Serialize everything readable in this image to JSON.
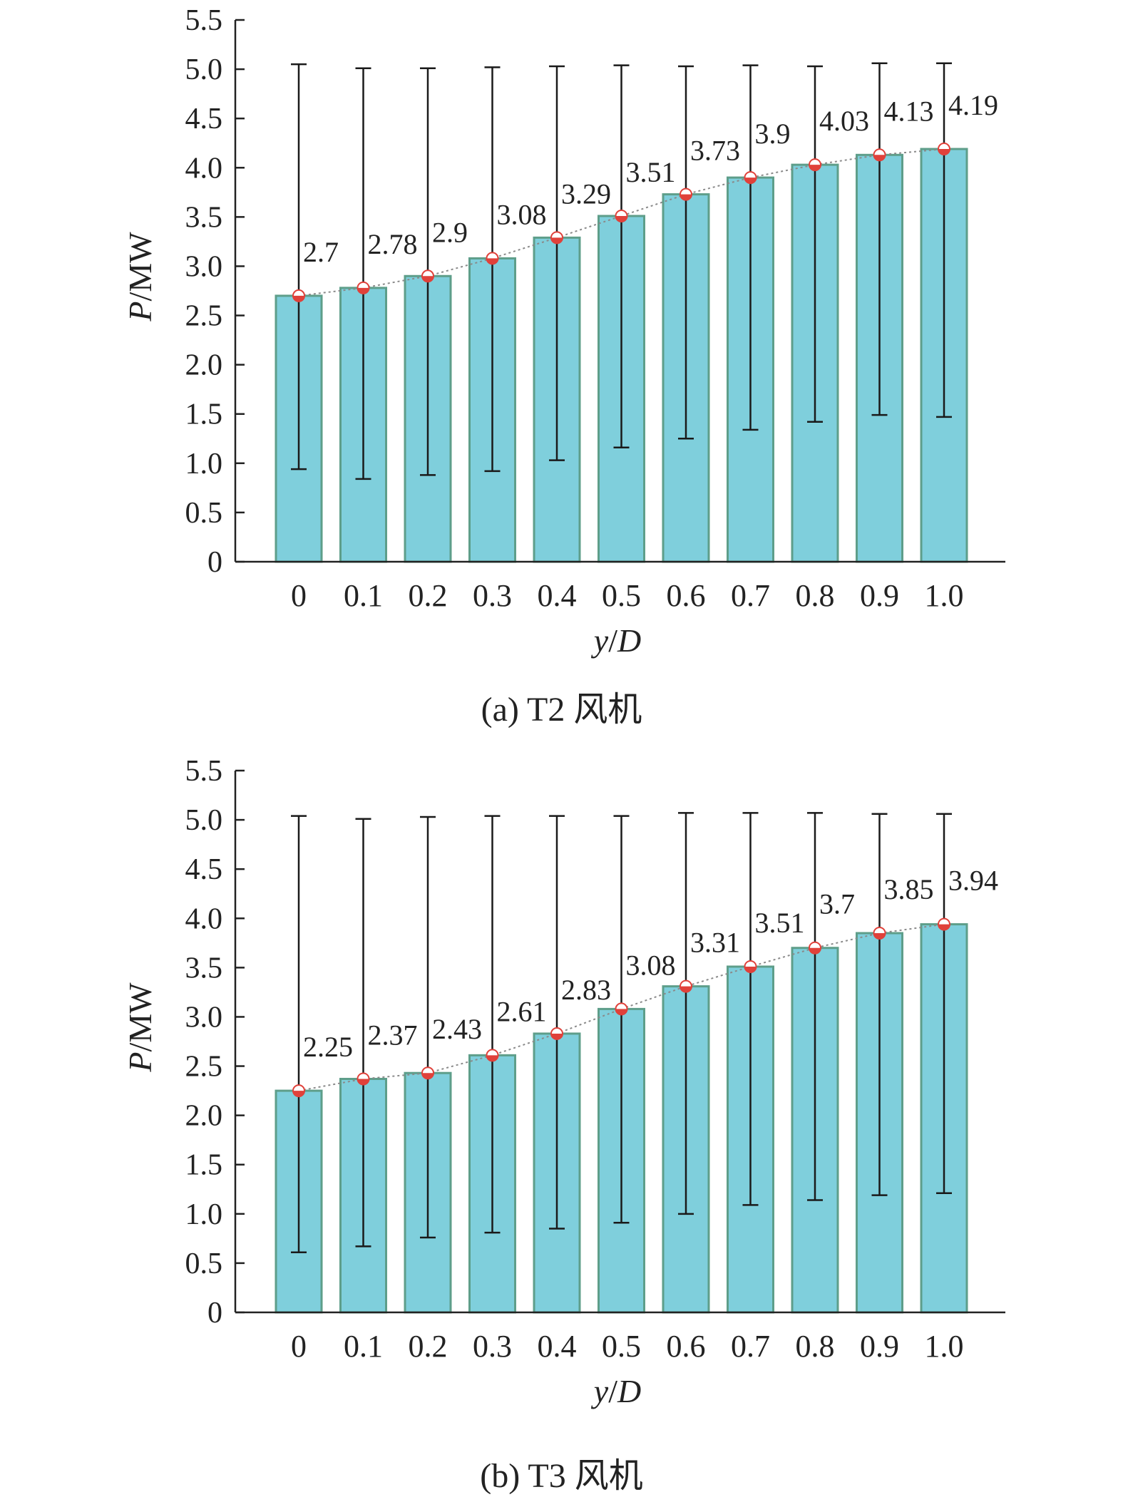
{
  "chart_data": [
    {
      "type": "bar",
      "caption": "(a) T2 风机",
      "xlabel": "y/D",
      "ylabel": "P/MW",
      "ylim": [
        0,
        5.5
      ],
      "yticks": [
        "0",
        "0.5",
        "1.0",
        "1.5",
        "2.0",
        "2.5",
        "3.0",
        "3.5",
        "4.0",
        "4.5",
        "5.0",
        "5.5"
      ],
      "categories": [
        "0",
        "0.1",
        "0.2",
        "0.3",
        "0.4",
        "0.5",
        "0.6",
        "0.7",
        "0.8",
        "0.9",
        "1.0"
      ],
      "values": [
        2.7,
        2.78,
        2.9,
        3.08,
        3.29,
        3.51,
        3.73,
        3.9,
        4.03,
        4.13,
        4.19
      ],
      "labels": [
        "2.7",
        "2.78",
        "2.9",
        "3.08",
        "3.29",
        "3.51",
        "3.73",
        "3.9",
        "4.03",
        "4.13",
        "4.19"
      ],
      "error_min": [
        0.94,
        0.84,
        0.88,
        0.92,
        1.03,
        1.16,
        1.25,
        1.34,
        1.42,
        1.49,
        1.47
      ],
      "error_max": [
        5.05,
        5.01,
        5.01,
        5.02,
        5.03,
        5.04,
        5.03,
        5.04,
        5.03,
        5.06,
        5.06
      ],
      "grid": false,
      "colors": {
        "bar": "#7fcfdc",
        "bar_edge": "#5e9e8a",
        "marker": "#e0413a",
        "trend": "#8a8a8a",
        "error": "#1a1a1a"
      }
    },
    {
      "type": "bar",
      "caption": "(b) T3 风机",
      "xlabel": "y/D",
      "ylabel": "P/MW",
      "ylim": [
        0,
        5.5
      ],
      "yticks": [
        "0",
        "0.5",
        "1.0",
        "1.5",
        "2.0",
        "2.5",
        "3.0",
        "3.5",
        "4.0",
        "4.5",
        "5.0",
        "5.5"
      ],
      "categories": [
        "0",
        "0.1",
        "0.2",
        "0.3",
        "0.4",
        "0.5",
        "0.6",
        "0.7",
        "0.8",
        "0.9",
        "1.0"
      ],
      "values": [
        2.25,
        2.37,
        2.43,
        2.61,
        2.83,
        3.08,
        3.31,
        3.51,
        3.7,
        3.85,
        3.94
      ],
      "labels": [
        "2.25",
        "2.37",
        "2.43",
        "2.61",
        "2.83",
        "3.08",
        "3.31",
        "3.51",
        "3.7",
        "3.85",
        "3.94"
      ],
      "error_min": [
        0.61,
        0.67,
        0.76,
        0.81,
        0.85,
        0.91,
        1.0,
        1.09,
        1.14,
        1.19,
        1.21
      ],
      "error_max": [
        5.04,
        5.01,
        5.03,
        5.04,
        5.04,
        5.04,
        5.07,
        5.07,
        5.07,
        5.06,
        5.06
      ],
      "grid": false,
      "colors": {
        "bar": "#7fcfdc",
        "bar_edge": "#5e9e8a",
        "marker": "#e0413a",
        "trend": "#8a8a8a",
        "error": "#1a1a1a"
      }
    }
  ]
}
